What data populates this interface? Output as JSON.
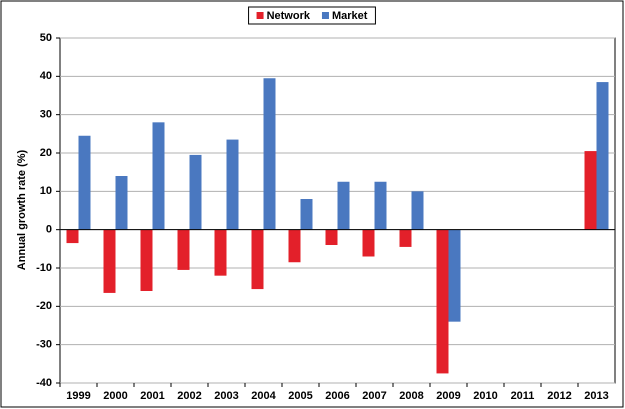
{
  "chart_data": {
    "type": "bar",
    "y_label": "Annual growth rate (%)",
    "categories": [
      "1999",
      "2000",
      "2001",
      "2002",
      "2003",
      "2004",
      "2005",
      "2006",
      "2007",
      "2008",
      "2009",
      "2010",
      "2011",
      "2012",
      "2013"
    ],
    "series": [
      {
        "name": "Network",
        "color": "#e3202a",
        "values": [
          -3.5,
          -16.5,
          -16,
          -10.5,
          -12,
          -15.5,
          -8.5,
          -4,
          -7,
          -4.5,
          -37.5,
          null,
          null,
          null,
          20.5
        ]
      },
      {
        "name": "Market",
        "color": "#4a78c0",
        "values": [
          24.5,
          14,
          28,
          19.5,
          23.5,
          39.5,
          8,
          12.5,
          12.5,
          10,
          -24,
          null,
          null,
          null,
          38.5
        ]
      }
    ],
    "ylim": [
      -40,
      50
    ],
    "yticks": [
      -40,
      -30,
      -20,
      -10,
      0,
      10,
      20,
      30,
      40,
      50
    ],
    "grid": true,
    "legend": "top"
  }
}
